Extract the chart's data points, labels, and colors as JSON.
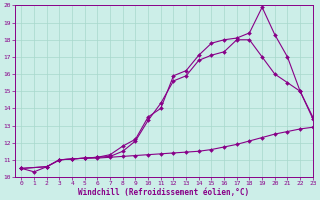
{
  "xlabel": "Windchill (Refroidissement éolien,°C)",
  "background_color": "#cceee8",
  "line_color": "#880088",
  "xlim": [
    -0.5,
    23
  ],
  "ylim": [
    10,
    20
  ],
  "xticks": [
    0,
    1,
    2,
    3,
    4,
    5,
    6,
    7,
    8,
    9,
    10,
    11,
    12,
    13,
    14,
    15,
    16,
    17,
    18,
    19,
    20,
    21,
    22,
    23
  ],
  "yticks": [
    10,
    11,
    12,
    13,
    14,
    15,
    16,
    17,
    18,
    19,
    20
  ],
  "line1_x": [
    0,
    1,
    2,
    3,
    4,
    5,
    6,
    7,
    8,
    9,
    10,
    11,
    12,
    13,
    14,
    15,
    16,
    17,
    18,
    19,
    20,
    21,
    22,
    23
  ],
  "line1_y": [
    10.5,
    10.3,
    10.6,
    11.0,
    11.05,
    11.1,
    11.1,
    11.15,
    11.2,
    11.25,
    11.3,
    11.35,
    11.4,
    11.45,
    11.5,
    11.6,
    11.75,
    11.9,
    12.1,
    12.3,
    12.5,
    12.65,
    12.8,
    12.9
  ],
  "line2_x": [
    0,
    2,
    3,
    4,
    5,
    6,
    7,
    8,
    9,
    10,
    11,
    12,
    13,
    14,
    15,
    16,
    17,
    18,
    19,
    20,
    21,
    22,
    23
  ],
  "line2_y": [
    10.5,
    10.6,
    11.0,
    11.05,
    11.1,
    11.15,
    11.2,
    11.5,
    12.1,
    13.3,
    14.3,
    15.6,
    15.9,
    16.8,
    17.1,
    17.3,
    18.0,
    18.0,
    17.0,
    16.0,
    15.5,
    15.0,
    13.4
  ],
  "line3_x": [
    0,
    2,
    3,
    4,
    5,
    6,
    7,
    8,
    9,
    10,
    11,
    12,
    13,
    14,
    15,
    16,
    17,
    18,
    19,
    20,
    21,
    22,
    23
  ],
  "line3_y": [
    10.5,
    10.6,
    11.0,
    11.05,
    11.1,
    11.15,
    11.3,
    11.8,
    12.2,
    13.5,
    14.0,
    15.9,
    16.2,
    17.1,
    17.8,
    18.0,
    18.1,
    18.4,
    19.9,
    18.3,
    17.0,
    15.0,
    13.5
  ],
  "grid_color": "#a8d8cc",
  "marker": "D",
  "markersize": 2.0,
  "linewidth": 0.8,
  "tick_fontsize": 4.5,
  "xlabel_fontsize": 5.5
}
